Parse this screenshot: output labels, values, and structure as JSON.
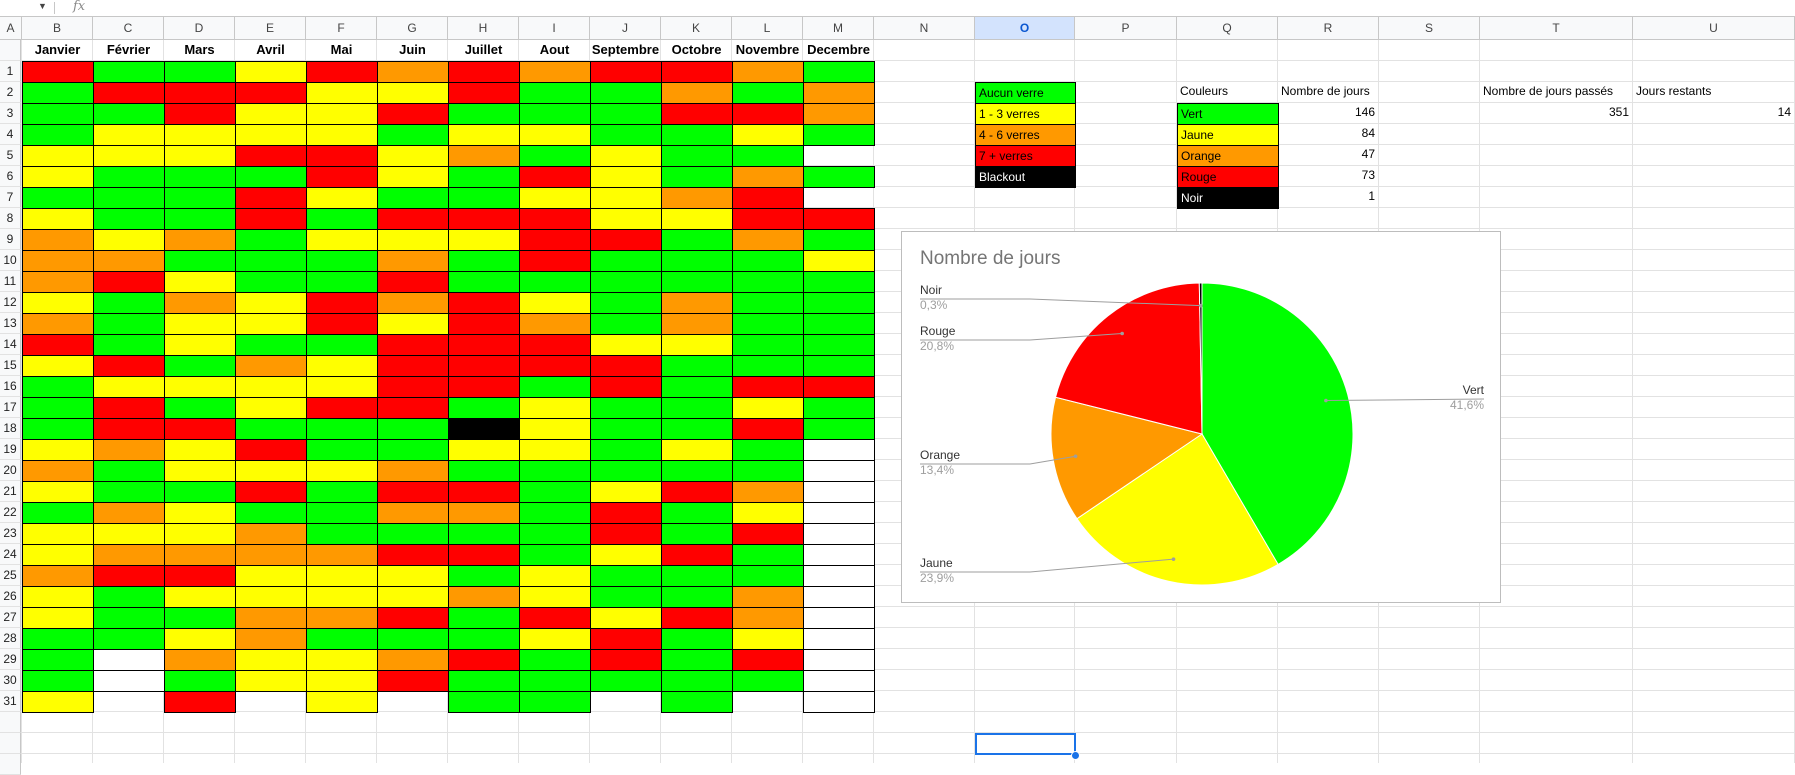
{
  "column_headers": [
    "A",
    "B",
    "C",
    "D",
    "E",
    "F",
    "G",
    "H",
    "I",
    "J",
    "K",
    "L",
    "M",
    "N",
    "O",
    "P",
    "Q",
    "R",
    "S",
    "T",
    "U"
  ],
  "selected_column": "O",
  "rows": [
    "1",
    "2",
    "3",
    "4",
    "5",
    "6",
    "7",
    "8",
    "9",
    "10",
    "11",
    "12",
    "13",
    "14",
    "15",
    "16",
    "17",
    "18",
    "19",
    "20",
    "21",
    "22",
    "23",
    "24",
    "25",
    "26",
    "27",
    "28",
    "29",
    "30",
    "31"
  ],
  "months": [
    "Janvier",
    "Février",
    "Mars",
    "Avril",
    "Mai",
    "Juin",
    "Juillet",
    "Aout",
    "Septembre",
    "Octobre",
    "Novembre",
    "Decembre"
  ],
  "colors": {
    "g": "#00ff00",
    "y": "#ffff00",
    "o": "#ff9900",
    "r": "#ff0000",
    "k": "#000000",
    "w": "#ffffff"
  },
  "calendar": [
    "rgggyrorororgg",
    "",
    "grrrorrryroyggo",
    "",
    "gryyyyyyggggg"
  ],
  "calendar_rows": [
    "rggyrororrog",
    "grrryyrggogo",
    "ggryyrgggrro",
    "gyyyygyyggyg",
    "yyyrryogygg",
    "ygggrygrygog",
    "gggryggyyor",
    "yggrgrrryyrr",
    "oyogyyyrrgog",
    "oogggogrgggy",
    "oryggrgggggg",
    "ygoyrorygogg",
    "ogyyryrogoggg",
    "rgyggrrryygg",
    "yrgoyrrrrggg",
    "gyyyyrrgrgrr",
    "grgyrrgyggyg",
    "grrgggkyggrg",
    "yoyrggyygygw",
    "ogyyyogggggw",
    "yggrgrrgyrow",
    "goyggoogrgyw",
    "yyyoggggrgrw",
    "yoooorrgyrgw",
    "orryyygygggw",
    "ygyyyyoyggow",
    "yggoorgryrow",
    "ggyogggyrgyw",
    "gwoyyorgrgrw",
    "gwgyyrgggggw",
    "y-r-y-gg-g-w"
  ],
  "legend": [
    {
      "label": "Aucun verre",
      "color": "#00ff00"
    },
    {
      "label": "1 - 3 verres",
      "color": "#ffff00"
    },
    {
      "label": "4 - 6 verres",
      "color": "#ff9900"
    },
    {
      "label": "7 + verres",
      "color": "#ff0000"
    },
    {
      "label": "Blackout",
      "color": "#000000"
    }
  ],
  "summary": {
    "header_colors": "Couleurs",
    "header_days": "Nombre de jours",
    "items": [
      {
        "label": "Vert",
        "value": "146",
        "color": "#00ff00"
      },
      {
        "label": "Jaune",
        "value": "84",
        "color": "#ffff00"
      },
      {
        "label": "Orange",
        "value": "47",
        "color": "#ff9900"
      },
      {
        "label": "Rouge",
        "value": "73",
        "color": "#ff0000"
      },
      {
        "label": "Noir",
        "value": "1",
        "color": "#000000"
      }
    ]
  },
  "counters": {
    "passed_label": "Nombre de jours passés",
    "passed_value": "351",
    "remaining_label": "Jours restants",
    "remaining_value": "14"
  },
  "chart_data": {
    "type": "pie",
    "title": "Nombre de jours",
    "slices": [
      {
        "name": "Vert",
        "value": 146,
        "percent": "41,6%",
        "color": "#00ff00"
      },
      {
        "name": "Jaune",
        "value": 84,
        "percent": "23,9%",
        "color": "#ffff00"
      },
      {
        "name": "Orange",
        "value": 47,
        "percent": "13,4%",
        "color": "#ff9900"
      },
      {
        "name": "Rouge",
        "value": 73,
        "percent": "20,8%",
        "color": "#ff0000"
      },
      {
        "name": "Noir",
        "value": 1,
        "percent": "0,3%",
        "color": "#000000"
      }
    ],
    "legend": "labeled"
  }
}
